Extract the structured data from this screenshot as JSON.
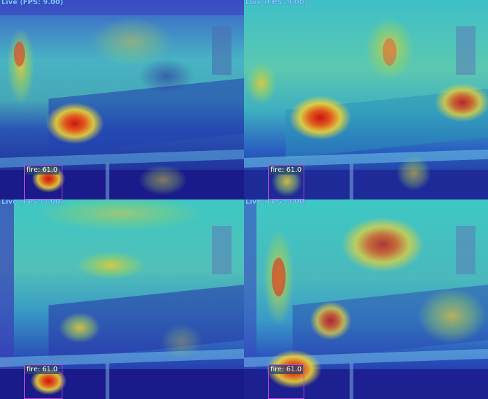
{
  "panels": [
    {
      "status": "Live (FPS: 9.00)",
      "detection": {
        "label": "fire: 61.0"
      }
    },
    {
      "status": "Live (FPS: 9.00)",
      "detection": {
        "label": "fire: 61.0"
      }
    },
    {
      "status": "Live (FPS: 9.00)",
      "detection": {
        "label": "fire: 61.0"
      }
    },
    {
      "status": "Live (FPS: 9.00)",
      "detection": {
        "label": "fire: 61.0"
      }
    }
  ],
  "colors": {
    "heat_low": "#2b2aa8",
    "heat_mid": "#3fb7c2",
    "heat_high": "#e8d23a",
    "heat_peak": "#d01a1a",
    "box": "#c04ad8",
    "status_text": "#7ec8ff"
  }
}
